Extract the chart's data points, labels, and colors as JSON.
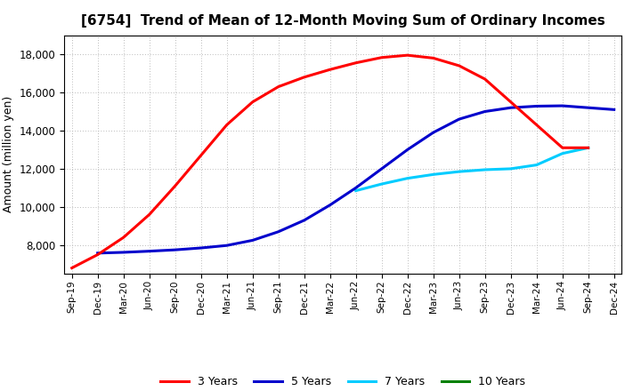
{
  "title": "[6754]  Trend of Mean of 12-Month Moving Sum of Ordinary Incomes",
  "ylabel": "Amount (million yen)",
  "background_color": "#ffffff",
  "grid_color": "#aaaaaa",
  "x_labels": [
    "Sep-19",
    "Dec-19",
    "Mar-20",
    "Jun-20",
    "Sep-20",
    "Dec-20",
    "Mar-21",
    "Jun-21",
    "Sep-21",
    "Dec-21",
    "Mar-22",
    "Jun-22",
    "Sep-22",
    "Dec-22",
    "Mar-23",
    "Jun-23",
    "Sep-23",
    "Dec-23",
    "Mar-24",
    "Jun-24",
    "Sep-24",
    "Dec-24"
  ],
  "ylim": [
    6500,
    19000
  ],
  "yticks": [
    8000,
    10000,
    12000,
    14000,
    16000,
    18000
  ],
  "series_3yr": {
    "color": "#ff0000",
    "x_indices": [
      0,
      1,
      2,
      3,
      4,
      5,
      6,
      7,
      8,
      9,
      10,
      11,
      12,
      13,
      14,
      15,
      16,
      17,
      18,
      19,
      20
    ],
    "values": [
      6800,
      7500,
      8400,
      9600,
      11100,
      12700,
      14300,
      15500,
      16300,
      16800,
      17200,
      17550,
      17830,
      17950,
      17800,
      17400,
      16700,
      15500,
      14300,
      13100,
      13100
    ]
  },
  "series_5yr": {
    "color": "#0000cc",
    "x_indices": [
      1,
      2,
      3,
      4,
      5,
      6,
      7,
      8,
      9,
      10,
      11,
      12,
      13,
      14,
      15,
      16,
      17,
      18,
      19,
      20,
      21
    ],
    "values": [
      7580,
      7620,
      7680,
      7750,
      7850,
      7980,
      8250,
      8700,
      9300,
      10100,
      11000,
      12000,
      13000,
      13900,
      14600,
      15000,
      15200,
      15280,
      15300,
      15200,
      15100
    ]
  },
  "series_7yr": {
    "color": "#00ccff",
    "x_indices": [
      11,
      12,
      13,
      14,
      15,
      16,
      17,
      18,
      19,
      20
    ],
    "values": [
      10850,
      11200,
      11500,
      11700,
      11850,
      11950,
      12000,
      12200,
      12800,
      13100
    ]
  },
  "series_10yr": {
    "color": "#008000",
    "x_indices": [],
    "values": []
  },
  "legend_labels": [
    "3 Years",
    "5 Years",
    "7 Years",
    "10 Years"
  ],
  "legend_colors": [
    "#ff0000",
    "#0000cc",
    "#00ccff",
    "#008000"
  ]
}
